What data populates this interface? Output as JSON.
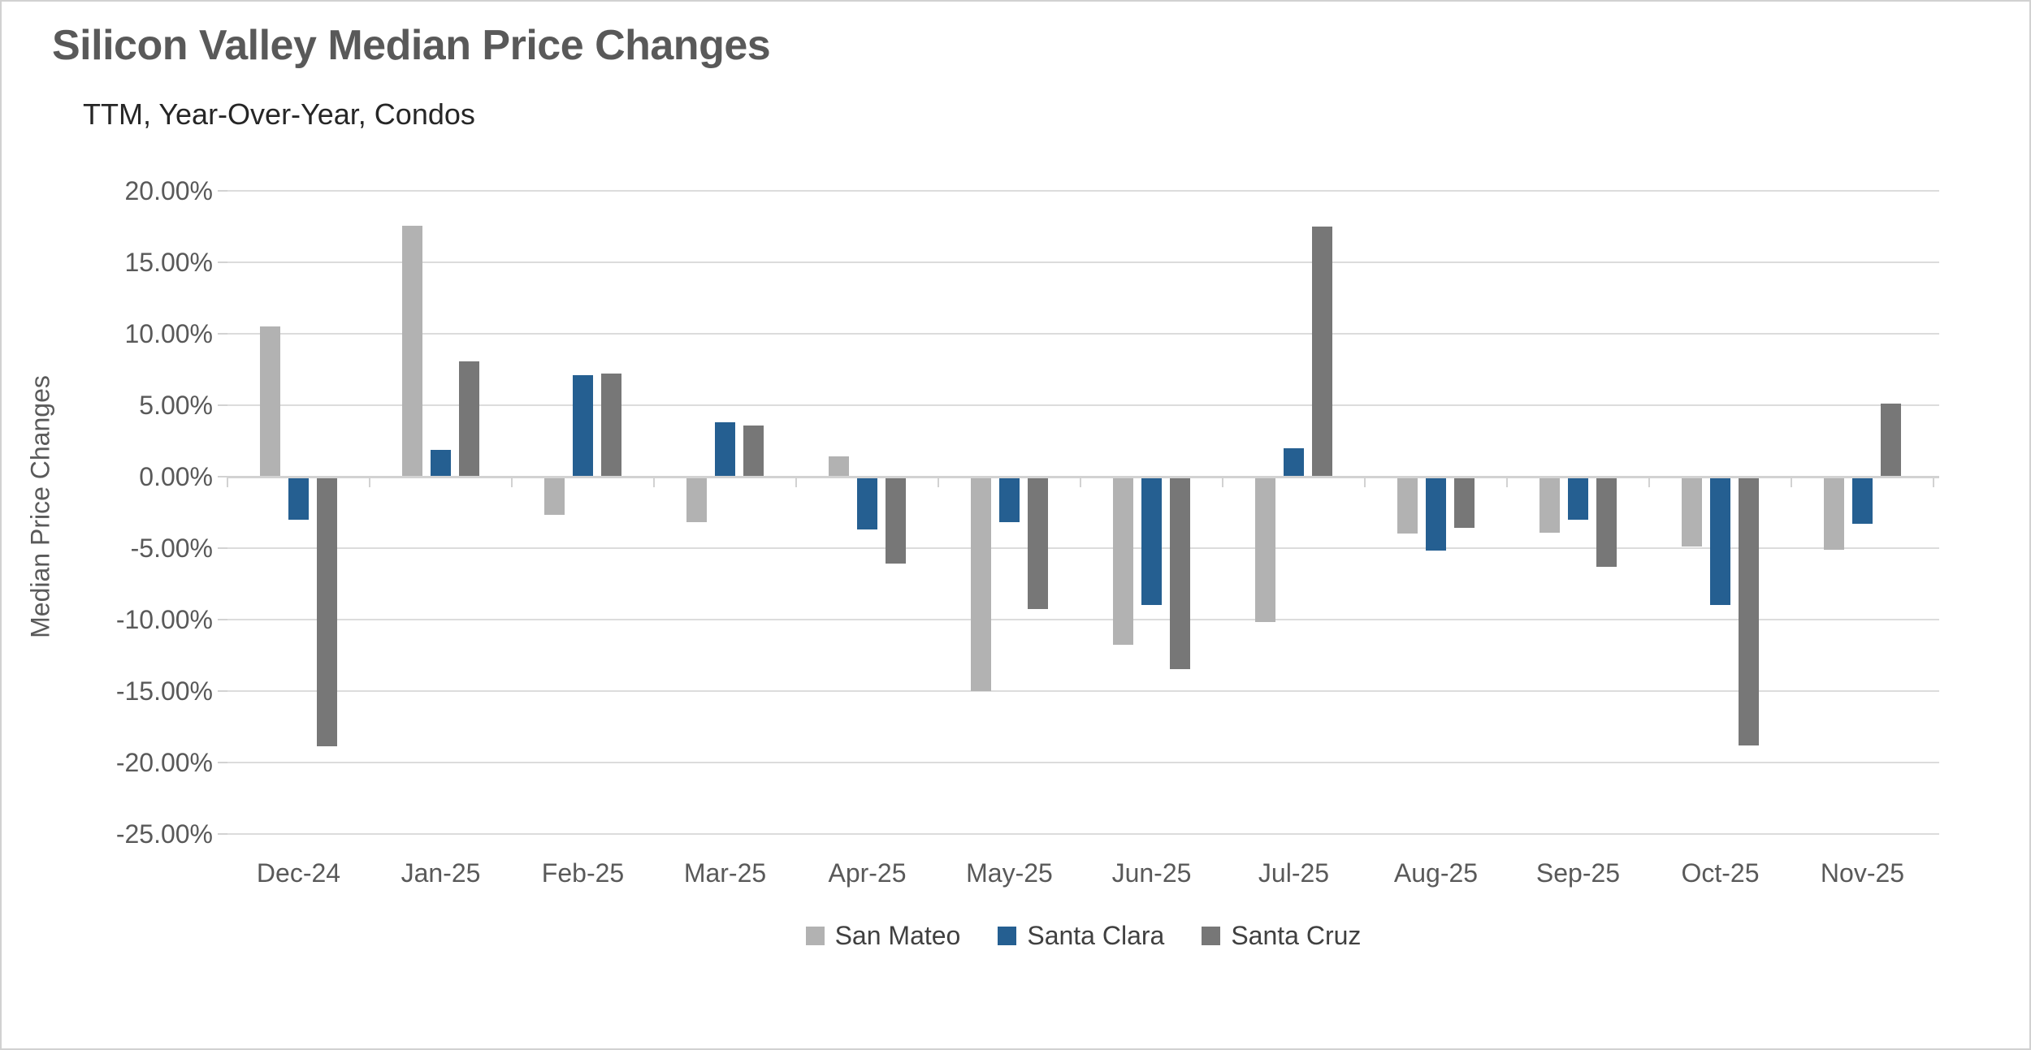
{
  "title": "Silicon Valley Median Price Changes",
  "subtitle": "TTM, Year-Over-Year, Condos",
  "y_axis_title": "Median Price Changes",
  "colors": {
    "san_mateo": "#b2b2b2",
    "santa_clara": "#255f91",
    "santa_cruz": "#777777",
    "gridline": "#dcdcdc",
    "axis_line": "#d2d2d2",
    "text": "#595959"
  },
  "chart_data": {
    "type": "bar",
    "title": "Silicon Valley Median Price Changes",
    "subtitle": "TTM, Year-Over-Year, Condos",
    "xlabel": "",
    "ylabel": "Median Price Changes",
    "ylim": [
      -25,
      20
    ],
    "y_tick_step": 5,
    "y_tick_values": [
      20,
      15,
      10,
      5,
      0,
      -5,
      -10,
      -15,
      -20,
      -25
    ],
    "y_tick_labels": [
      "20.00%",
      "15.00%",
      "10.00%",
      "5.00%",
      "0.00%",
      "-5.00%",
      "-10.00%",
      "-15.00%",
      "-20.00%",
      "-25.00%"
    ],
    "grid": true,
    "legend_position": "bottom",
    "categories": [
      "Dec-24",
      "Jan-25",
      "Feb-25",
      "Mar-25",
      "Apr-25",
      "May-25",
      "Jun-25",
      "Jul-25",
      "Aug-25",
      "Sep-25",
      "Oct-25",
      "Nov-25"
    ],
    "series": [
      {
        "name": "San Mateo",
        "color": "#b2b2b2",
        "values": [
          10.5,
          17.6,
          -2.7,
          -3.2,
          1.4,
          -15.0,
          -11.8,
          -10.2,
          -4.0,
          -3.9,
          -4.9,
          -5.1
        ]
      },
      {
        "name": "Santa Clara",
        "color": "#255f91",
        "values": [
          -3.0,
          1.9,
          7.1,
          3.8,
          -3.7,
          -3.2,
          -9.0,
          2.0,
          -5.2,
          -3.0,
          -9.0,
          -3.3
        ]
      },
      {
        "name": "Santa Cruz",
        "color": "#777777",
        "values": [
          -18.9,
          8.1,
          7.2,
          3.6,
          -6.1,
          -9.3,
          -13.5,
          17.5,
          -3.6,
          -6.3,
          -18.8,
          5.1
        ]
      }
    ]
  }
}
